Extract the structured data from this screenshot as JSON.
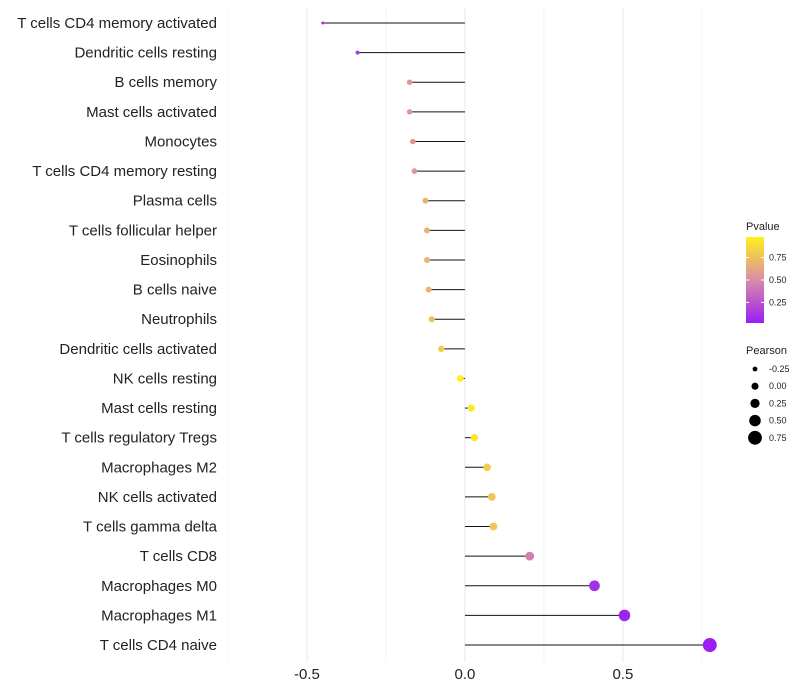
{
  "chart_data": {
    "type": "lollipop",
    "title": "",
    "xlabel": "",
    "ylabel": "",
    "xlim": [
      -0.75,
      0.82
    ],
    "x_ticks": [
      -0.5,
      0.0,
      0.5
    ],
    "x_tick_labels": [
      "-0.5",
      "0.0",
      "0.5"
    ],
    "grid": true,
    "points": [
      {
        "category": "T cells CD4 memory activated",
        "pearson": -0.45,
        "pvalue": 0.1
      },
      {
        "category": "Dendritic cells resting",
        "pearson": -0.34,
        "pvalue": 0.15
      },
      {
        "category": "B cells memory",
        "pearson": -0.175,
        "pvalue": 0.55
      },
      {
        "category": "Mast cells activated",
        "pearson": -0.175,
        "pvalue": 0.55
      },
      {
        "category": "Monocytes",
        "pearson": -0.165,
        "pvalue": 0.55
      },
      {
        "category": "T cells CD4 memory resting",
        "pearson": -0.16,
        "pvalue": 0.55
      },
      {
        "category": "Plasma cells",
        "pearson": -0.125,
        "pvalue": 0.68
      },
      {
        "category": "T cells follicular helper",
        "pearson": -0.12,
        "pvalue": 0.68
      },
      {
        "category": "Eosinophils",
        "pearson": -0.12,
        "pvalue": 0.68
      },
      {
        "category": "B cells naive",
        "pearson": -0.115,
        "pvalue": 0.7
      },
      {
        "category": "Neutrophils",
        "pearson": -0.105,
        "pvalue": 0.75
      },
      {
        "category": "Dendritic cells activated",
        "pearson": -0.075,
        "pvalue": 0.82
      },
      {
        "category": "NK cells resting",
        "pearson": -0.015,
        "pvalue": 0.98
      },
      {
        "category": "Mast cells resting",
        "pearson": 0.02,
        "pvalue": 0.95
      },
      {
        "category": "T cells regulatory  Tregs ",
        "pearson": 0.03,
        "pvalue": 0.93
      },
      {
        "category": "Macrophages M2",
        "pearson": 0.07,
        "pvalue": 0.82
      },
      {
        "category": "NK cells activated",
        "pearson": 0.085,
        "pvalue": 0.78
      },
      {
        "category": "T cells gamma delta",
        "pearson": 0.09,
        "pvalue": 0.78
      },
      {
        "category": "T cells CD8",
        "pearson": 0.205,
        "pvalue": 0.45
      },
      {
        "category": "Macrophages M0",
        "pearson": 0.41,
        "pvalue": 0.1
      },
      {
        "category": "Macrophages M1",
        "pearson": 0.505,
        "pvalue": 0.05
      },
      {
        "category": "T cells CD4 naive",
        "pearson": 0.775,
        "pvalue": 0.02
      }
    ],
    "color_legend": {
      "title": "Pvalue",
      "ticks": [
        0.25,
        0.5,
        0.75
      ],
      "tick_labels": [
        "0.25",
        "0.50",
        "0.75"
      ],
      "low_color": "#9A1EF5",
      "mid_color": "#D98CA6",
      "high_color": "#FFF01E"
    },
    "size_legend": {
      "title": "Pearson",
      "values": [
        -0.25,
        0.0,
        0.25,
        0.5,
        0.75
      ],
      "labels": [
        "-0.25",
        "0.00",
        "0.25",
        "0.50",
        "0.75"
      ]
    }
  }
}
